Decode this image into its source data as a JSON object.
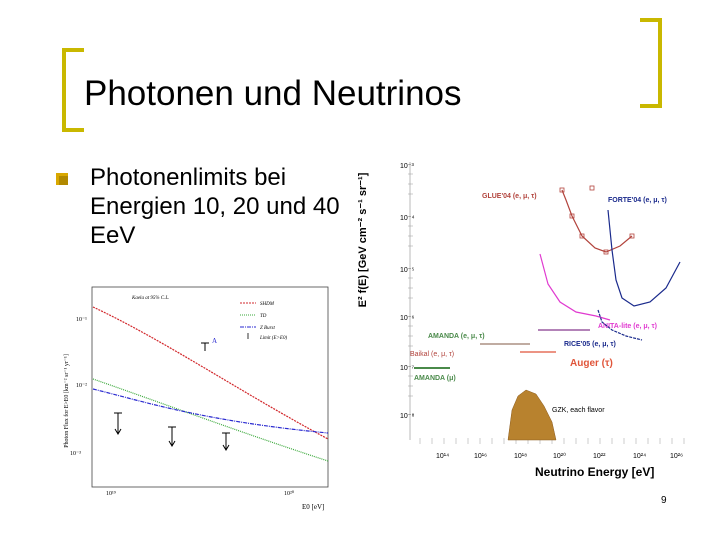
{
  "slide": {
    "title": "Photonen und Neutrinos",
    "bullet": "Photonenlimits bei Energien 10, 20 und 40 EeV",
    "page_number": "9"
  },
  "colors": {
    "bracket": "#c9b800",
    "bullet": "#d9a800",
    "red": "#d2282c",
    "green": "#3aa83a",
    "blue": "#2a2ad0",
    "brown": "#b2433c",
    "magenta": "#e03ad0",
    "navy": "#1a2a8c",
    "amanda": "#4a8a4a",
    "orange": "#e0553a",
    "gzk": "#b8822e"
  },
  "left_plot": {
    "legend_header": "Kaela at 95% C.L.",
    "legend": [
      "SHDM",
      "TD",
      "Z Burst",
      "Limit (E>E0)"
    ],
    "ylabel": "Photon Flux for E>E0 [km⁻² sr⁻¹ yr⁻¹]",
    "xlabel": "E0 [eV]",
    "y_ticks": [
      "10⁻¹",
      "10⁻²",
      "10⁻³"
    ],
    "x_ticks": [
      "10¹⁹",
      "10²⁰"
    ],
    "marker_label": "A"
  },
  "right_plot": {
    "ylabel": "E² f(E) [GeV cm⁻² s⁻¹ sr⁻¹]",
    "xlabel": "Neutrino Energy [eV]",
    "y_ticks": [
      "10⁻³",
      "10⁻⁴",
      "10⁻⁵",
      "10⁻⁶",
      "10⁻⁷",
      "10⁻⁸"
    ],
    "x_ticks": [
      "10¹⁴",
      "10¹⁶",
      "10¹⁸",
      "10²⁰",
      "10²²",
      "10²⁴",
      "10²⁶"
    ],
    "labels": {
      "glue": "GLUE'04  (e, μ, τ)",
      "forte": "FORTE'04  (e, μ, τ)",
      "anita": "ANITA-lite  (e, μ, τ)",
      "amanda1": "AMANDA (e, μ, τ)",
      "rice": "RICE'05  (e, μ, τ)",
      "baikal": "Baikal (e, μ, τ)",
      "auger": "Auger (τ)",
      "amanda2": "AMANDA (μ)",
      "gzk": "GZK, each flavor"
    }
  }
}
